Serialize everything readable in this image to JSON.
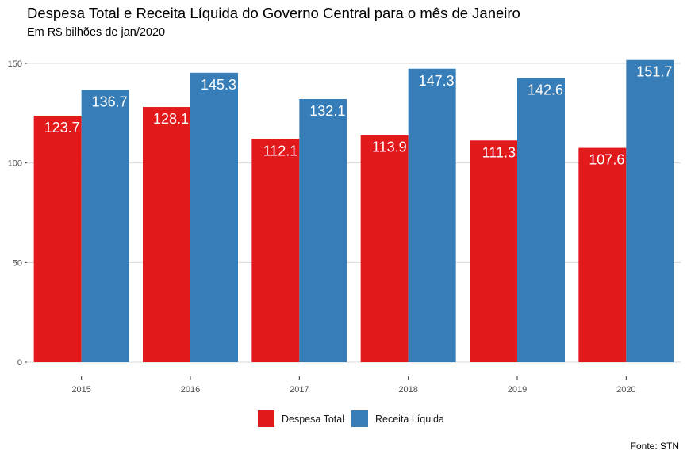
{
  "chart_data": {
    "type": "bar",
    "title": "Despesa Total e Receita Líquida do Governo Central para o mês de Janeiro",
    "subtitle": "Em R$ bilhões de jan/2020",
    "xlabel": "",
    "ylabel": "",
    "categories": [
      "2015",
      "2016",
      "2017",
      "2018",
      "2019",
      "2020"
    ],
    "series": [
      {
        "name": "Despesa Total",
        "color": "#e31a1c",
        "values": [
          123.7,
          128.1,
          112.1,
          113.9,
          111.3,
          107.6
        ]
      },
      {
        "name": "Receita Líquida",
        "color": "#377eb8",
        "values": [
          136.7,
          145.3,
          132.1,
          147.3,
          142.6,
          151.7
        ]
      }
    ],
    "data_labels": [
      [
        "123.7",
        "128.1",
        "112.1",
        "113.9",
        "111.3",
        "107.6"
      ],
      [
        "136.7",
        "145.3",
        "132.1",
        "147.3",
        "142.6",
        "151.7"
      ]
    ],
    "yticks": [
      0,
      50,
      100,
      150
    ],
    "ylim": [
      0,
      150
    ],
    "grid": "horizontal",
    "legend_position": "bottom",
    "caption": "Fonte: STN"
  }
}
